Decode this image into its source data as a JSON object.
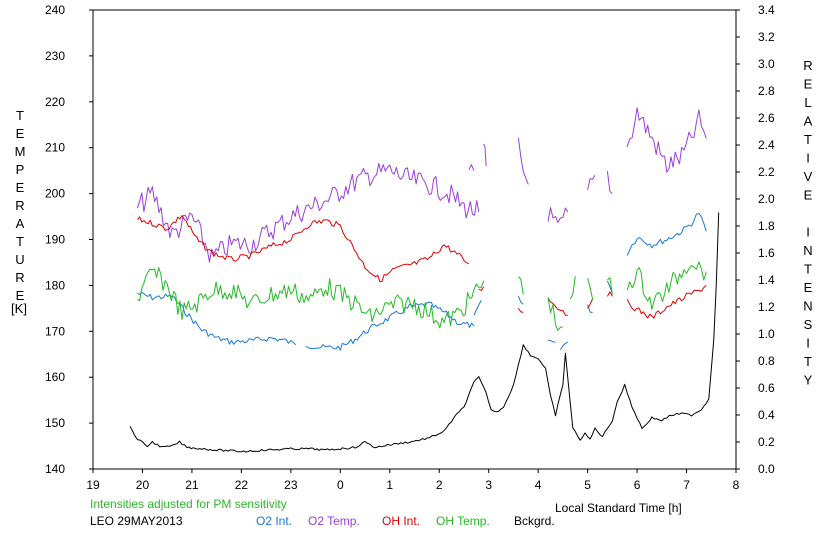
{
  "chart_data": {
    "type": "line",
    "left_axis": {
      "label": "TEMPERATURE",
      "unit": "[K]",
      "ylim": [
        140,
        240
      ],
      "ticks": [
        "140",
        "150",
        "160",
        "170",
        "180",
        "190",
        "200",
        "210",
        "220",
        "230",
        "240"
      ]
    },
    "right_axis": {
      "label": "RELATIVE INTENSITY",
      "ylim": [
        0,
        3.4
      ],
      "ticks": [
        "0.0",
        "0.2",
        "0.4",
        "0.6",
        "0.8",
        "1.0",
        "1.2",
        "1.4",
        "1.6",
        "1.8",
        "2.0",
        "2.2",
        "2.4",
        "2.6",
        "2.8",
        "3.0",
        "3.2",
        "3.4"
      ]
    },
    "x_axis": {
      "label": "Local Standard Time [h]",
      "xlim": [
        19,
        32
      ],
      "ticks": [
        "19",
        "20",
        "21",
        "22",
        "23",
        "0",
        "1",
        "2",
        "3",
        "4",
        "5",
        "6",
        "7",
        "8"
      ]
    },
    "note": "Intensities adjusted for PM sensitivity",
    "station": "LEO 29MAY2013",
    "colors": {
      "o2_int": "#1a78d8",
      "o2_temp": "#9a3fd8",
      "oh_int": "#e00000",
      "oh_temp": "#22bb22",
      "bckgrd": "#000000"
    },
    "series": [
      {
        "name": "O2 Int.",
        "axis": "right",
        "color": "#1a78d8",
        "segments": [
          [
            [
              19.9,
              1.3
            ],
            [
              20.2,
              1.27
            ],
            [
              20.6,
              1.28
            ],
            [
              20.9,
              1.15
            ],
            [
              21.2,
              1.03
            ],
            [
              21.5,
              0.97
            ],
            [
              21.8,
              0.94
            ],
            [
              22.2,
              0.95
            ],
            [
              22.6,
              0.97
            ],
            [
              22.9,
              0.95
            ],
            [
              23.1,
              0.92
            ]
          ],
          [
            [
              23.3,
              0.92
            ],
            [
              23.6,
              0.9
            ],
            [
              24.0,
              0.9
            ],
            [
              24.3,
              0.96
            ],
            [
              24.6,
              1.04
            ],
            [
              25.0,
              1.12
            ],
            [
              25.4,
              1.2
            ],
            [
              25.8,
              1.22
            ],
            [
              26.1,
              1.16
            ],
            [
              26.4,
              1.08
            ],
            [
              26.7,
              1.06
            ]
          ],
          [
            [
              26.7,
              1.12
            ],
            [
              26.85,
              1.25
            ]
          ],
          [
            [
              27.6,
              1.26
            ],
            [
              27.7,
              1.22
            ]
          ],
          [
            [
              28.2,
              0.95
            ],
            [
              28.35,
              0.94
            ]
          ],
          [
            [
              28.45,
              0.9
            ],
            [
              28.6,
              0.94
            ]
          ],
          [
            [
              29.0,
              1.2
            ],
            [
              29.1,
              1.16
            ]
          ],
          [
            [
              29.4,
              1.4
            ],
            [
              29.5,
              1.3
            ]
          ],
          [
            [
              29.8,
              1.6
            ],
            [
              30.0,
              1.72
            ],
            [
              30.3,
              1.66
            ],
            [
              30.6,
              1.7
            ],
            [
              30.9,
              1.76
            ],
            [
              31.1,
              1.82
            ],
            [
              31.25,
              1.9
            ],
            [
              31.4,
              1.76
            ]
          ]
        ]
      },
      {
        "name": "O2 Temp.",
        "axis": "left",
        "color": "#9a3fd8",
        "segments": [
          [
            [
              19.9,
              197
            ],
            [
              20.2,
              200
            ],
            [
              20.6,
              191
            ],
            [
              21.0,
              195
            ],
            [
              21.4,
              186
            ],
            [
              21.8,
              189
            ],
            [
              22.2,
              189
            ],
            [
              22.6,
              192
            ],
            [
              23.0,
              195
            ],
            [
              23.4,
              197
            ],
            [
              23.8,
              199
            ],
            [
              24.2,
              202
            ],
            [
              24.6,
              204
            ],
            [
              25.0,
              205
            ],
            [
              25.4,
              203
            ],
            [
              25.8,
              202
            ],
            [
              26.2,
              200
            ],
            [
              26.5,
              197
            ],
            [
              26.8,
              196
            ]
          ],
          [
            [
              26.6,
              204
            ],
            [
              26.7,
              205
            ]
          ],
          [
            [
              26.9,
              210
            ],
            [
              26.95,
              206
            ]
          ],
          [
            [
              27.6,
              211
            ],
            [
              27.7,
              205
            ],
            [
              27.8,
              202
            ]
          ],
          [
            [
              28.2,
              196
            ],
            [
              28.4,
              192
            ],
            [
              28.6,
              196
            ]
          ],
          [
            [
              29.0,
              200
            ],
            [
              29.15,
              204
            ]
          ],
          [
            [
              29.4,
              204
            ],
            [
              29.5,
              200
            ]
          ],
          [
            [
              29.8,
              210
            ],
            [
              30.0,
              218
            ],
            [
              30.3,
              212
            ],
            [
              30.6,
              206
            ],
            [
              30.9,
              208
            ],
            [
              31.1,
              212
            ],
            [
              31.25,
              216
            ],
            [
              31.4,
              212
            ]
          ]
        ]
      },
      {
        "name": "OH Int.",
        "axis": "right",
        "color": "#e00000",
        "segments": [
          [
            [
              19.9,
              1.85
            ],
            [
              20.2,
              1.82
            ],
            [
              20.5,
              1.78
            ],
            [
              20.8,
              1.88
            ],
            [
              21.1,
              1.7
            ],
            [
              21.4,
              1.6
            ],
            [
              21.8,
              1.55
            ],
            [
              22.2,
              1.58
            ],
            [
              22.6,
              1.65
            ],
            [
              23.0,
              1.7
            ],
            [
              23.4,
              1.82
            ],
            [
              23.7,
              1.84
            ],
            [
              24.0,
              1.8
            ],
            [
              24.2,
              1.68
            ],
            [
              24.5,
              1.5
            ],
            [
              24.8,
              1.4
            ],
            [
              25.1,
              1.48
            ],
            [
              25.5,
              1.52
            ],
            [
              25.8,
              1.56
            ],
            [
              26.1,
              1.66
            ],
            [
              26.4,
              1.58
            ],
            [
              26.6,
              1.52
            ]
          ],
          [
            [
              26.8,
              1.32
            ],
            [
              26.9,
              1.35
            ]
          ],
          [
            [
              27.6,
              1.2
            ],
            [
              27.7,
              1.16
            ]
          ],
          [
            [
              28.2,
              1.26
            ],
            [
              28.4,
              1.2
            ],
            [
              28.6,
              1.14
            ]
          ],
          [
            [
              29.0,
              1.2
            ],
            [
              29.1,
              1.26
            ]
          ],
          [
            [
              29.4,
              1.3
            ],
            [
              29.5,
              1.28
            ]
          ],
          [
            [
              29.8,
              1.24
            ],
            [
              30.0,
              1.18
            ],
            [
              30.3,
              1.12
            ],
            [
              30.6,
              1.2
            ],
            [
              30.9,
              1.26
            ],
            [
              31.1,
              1.3
            ],
            [
              31.25,
              1.32
            ],
            [
              31.4,
              1.36
            ]
          ]
        ]
      },
      {
        "name": "OH Temp.",
        "axis": "left",
        "color": "#22bb22",
        "segments": [
          [
            [
              19.9,
              177
            ],
            [
              20.2,
              183
            ],
            [
              20.5,
              180
            ],
            [
              20.8,
              174
            ],
            [
              21.1,
              176
            ],
            [
              21.4,
              179
            ],
            [
              21.8,
              179
            ],
            [
              22.2,
              176
            ],
            [
              22.6,
              178
            ],
            [
              23.0,
              179
            ],
            [
              23.4,
              177
            ],
            [
              23.7,
              180
            ],
            [
              24.0,
              178
            ],
            [
              24.3,
              176
            ],
            [
              24.6,
              173
            ],
            [
              24.9,
              175
            ],
            [
              25.2,
              176
            ],
            [
              25.5,
              176
            ],
            [
              25.8,
              174
            ],
            [
              26.1,
              172
            ],
            [
              26.4,
              174
            ],
            [
              26.7,
              178
            ],
            [
              26.9,
              181
            ]
          ],
          [
            [
              27.6,
              182
            ],
            [
              27.7,
              178
            ]
          ],
          [
            [
              28.2,
              178
            ],
            [
              28.35,
              172
            ],
            [
              28.5,
              171
            ]
          ],
          [
            [
              28.65,
              175
            ],
            [
              28.75,
              182
            ]
          ],
          [
            [
              29.0,
              180
            ],
            [
              29.1,
              177
            ]
          ],
          [
            [
              29.4,
              182
            ],
            [
              29.5,
              178
            ]
          ],
          [
            [
              29.8,
              180
            ],
            [
              30.0,
              183
            ],
            [
              30.3,
              176
            ],
            [
              30.6,
              179
            ],
            [
              30.9,
              183
            ],
            [
              31.1,
              186
            ],
            [
              31.25,
              184
            ],
            [
              31.4,
              183
            ]
          ]
        ]
      },
      {
        "name": "Bckgrd.",
        "axis": "right",
        "color": "#000000",
        "segments": [
          [
            [
              19.75,
              0.31
            ],
            [
              19.9,
              0.22
            ],
            [
              20.1,
              0.17
            ],
            [
              20.2,
              0.2
            ],
            [
              20.4,
              0.16
            ],
            [
              20.6,
              0.17
            ],
            [
              20.75,
              0.2
            ],
            [
              20.9,
              0.16
            ],
            [
              21.2,
              0.15
            ],
            [
              21.5,
              0.14
            ],
            [
              22.0,
              0.13
            ],
            [
              22.5,
              0.14
            ],
            [
              23.0,
              0.15
            ],
            [
              23.4,
              0.15
            ],
            [
              23.7,
              0.14
            ],
            [
              24.0,
              0.15
            ],
            [
              24.3,
              0.16
            ],
            [
              24.5,
              0.2
            ],
            [
              24.7,
              0.16
            ],
            [
              25.0,
              0.18
            ],
            [
              25.4,
              0.2
            ],
            [
              25.8,
              0.23
            ],
            [
              26.1,
              0.28
            ],
            [
              26.3,
              0.38
            ],
            [
              26.5,
              0.46
            ],
            [
              26.7,
              0.64
            ],
            [
              26.8,
              0.68
            ],
            [
              26.95,
              0.56
            ],
            [
              27.05,
              0.44
            ],
            [
              27.15,
              0.42
            ],
            [
              27.3,
              0.46
            ],
            [
              27.5,
              0.62
            ],
            [
              27.7,
              0.92
            ],
            [
              27.85,
              0.84
            ],
            [
              28.0,
              0.82
            ],
            [
              28.15,
              0.74
            ],
            [
              28.25,
              0.54
            ],
            [
              28.35,
              0.4
            ],
            [
              28.5,
              0.62
            ],
            [
              28.55,
              0.86
            ],
            [
              28.7,
              0.3
            ],
            [
              28.85,
              0.22
            ],
            [
              28.95,
              0.26
            ],
            [
              29.05,
              0.22
            ],
            [
              29.15,
              0.3
            ],
            [
              29.3,
              0.24
            ],
            [
              29.5,
              0.36
            ],
            [
              29.6,
              0.5
            ],
            [
              29.75,
              0.62
            ],
            [
              29.9,
              0.46
            ],
            [
              30.1,
              0.3
            ],
            [
              30.3,
              0.38
            ],
            [
              30.5,
              0.36
            ],
            [
              30.7,
              0.4
            ],
            [
              30.9,
              0.41
            ],
            [
              31.1,
              0.4
            ],
            [
              31.3,
              0.44
            ],
            [
              31.45,
              0.52
            ],
            [
              31.55,
              0.96
            ],
            [
              31.6,
              1.36
            ],
            [
              31.65,
              1.9
            ]
          ]
        ]
      }
    ]
  }
}
